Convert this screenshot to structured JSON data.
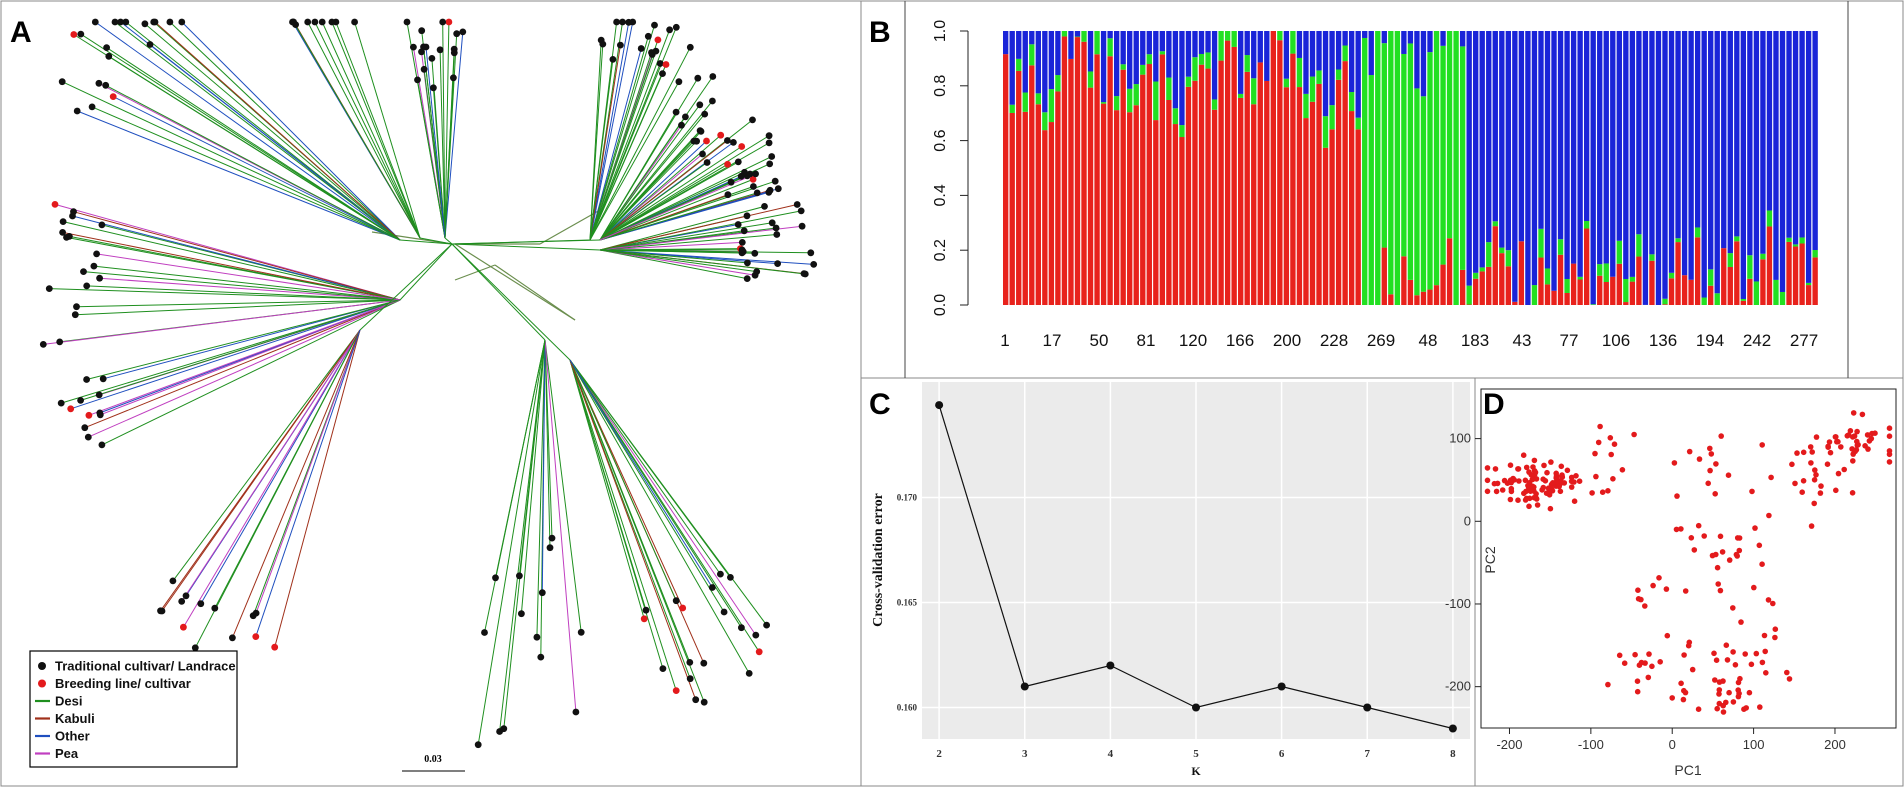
{
  "chart_data": [
    {
      "panel": "A",
      "type": "tree",
      "title": "",
      "scale_bar_label": "0.03",
      "legend": [
        {
          "label": "Traditional cultivar/ Landrace",
          "kind": "dot",
          "color": "#111111"
        },
        {
          "label": "Breeding line/ cultivar",
          "kind": "dot",
          "color": "#e31a1c"
        },
        {
          "label": "Desi",
          "kind": "line",
          "color": "#1f8f1f"
        },
        {
          "label": "Kabuli",
          "kind": "line",
          "color": "#a0301a"
        },
        {
          "label": "Other",
          "kind": "line",
          "color": "#1f4fbf"
        },
        {
          "label": "Pea",
          "kind": "line",
          "color": "#c03fc0"
        }
      ]
    },
    {
      "panel": "B",
      "type": "bar",
      "stacked": true,
      "title": "",
      "ylim": [
        0,
        1
      ],
      "yticks": [
        "0.0",
        "0.2",
        "0.4",
        "0.6",
        "0.8",
        "1.0"
      ],
      "xticks": [
        "1",
        "17",
        "50",
        "81",
        "120",
        "166",
        "200",
        "228",
        "269",
        "48",
        "183",
        "43",
        "77",
        "106",
        "136",
        "194",
        "242",
        "277"
      ],
      "groups": [
        {
          "name": "red-dominant",
          "bars": 55,
          "mean_red": 0.8,
          "mean_green": 0.06,
          "mean_blue": 0.14
        },
        {
          "name": "green-dominant",
          "bars": 16,
          "mean_red": 0.02,
          "mean_green": 0.97,
          "mean_blue": 0.01
        },
        {
          "name": "blue-dominant",
          "bars": 54,
          "mean_red": 0.1,
          "mean_green": 0.03,
          "mean_blue": 0.87
        }
      ],
      "colors": {
        "red": "#e8221c",
        "green": "#22e022",
        "blue": "#1a24d8"
      }
    },
    {
      "panel": "C",
      "type": "line",
      "title": "",
      "xlabel": "K",
      "ylabel": "Cross-validation error",
      "x": [
        2,
        3,
        4,
        5,
        6,
        7,
        8
      ],
      "y": [
        0.1744,
        0.161,
        0.162,
        0.16,
        0.161,
        0.16,
        0.159
      ],
      "xlim": [
        1.8,
        8.2
      ],
      "ylim": [
        0.1585,
        0.1755
      ],
      "yticks": [
        "0.160",
        "0.165",
        "0.170"
      ],
      "xticks": [
        "2",
        "3",
        "4",
        "5",
        "6",
        "7",
        "8"
      ]
    },
    {
      "panel": "D",
      "type": "scatter",
      "title": "",
      "xlabel": "PC1",
      "ylabel": "PC2",
      "xlim": [
        -235,
        275
      ],
      "ylim": [
        -250,
        160
      ],
      "xticks": [
        "-200",
        "-100",
        "0",
        "100",
        "200"
      ],
      "yticks": [
        "-200",
        "-100",
        "0",
        "100"
      ],
      "color": "#e31a1c",
      "clusters": [
        {
          "cx": -165,
          "cy": 45,
          "sx": 28,
          "sy": 14,
          "n": 95
        },
        {
          "cx": 225,
          "cy": 92,
          "sx": 30,
          "sy": 14,
          "n": 40
        },
        {
          "cx": 170,
          "cy": 45,
          "sx": 28,
          "sy": 30,
          "n": 20
        },
        {
          "cx": 55,
          "cy": -25,
          "sx": 25,
          "sy": 28,
          "n": 25
        },
        {
          "cx": 50,
          "cy": 60,
          "sx": 25,
          "sy": 22,
          "n": 12
        },
        {
          "cx": 55,
          "cy": -185,
          "sx": 35,
          "sy": 30,
          "n": 45
        },
        {
          "cx": -45,
          "cy": -175,
          "sx": 16,
          "sy": 18,
          "n": 12
        },
        {
          "cx": -25,
          "cy": -80,
          "sx": 15,
          "sy": 15,
          "n": 8
        },
        {
          "cx": 110,
          "cy": -120,
          "sx": 30,
          "sy": 30,
          "n": 10
        },
        {
          "cx": -80,
          "cy": 70,
          "sx": 18,
          "sy": 25,
          "n": 10
        }
      ]
    }
  ],
  "panel_labels": [
    "A",
    "B",
    "C",
    "D"
  ]
}
